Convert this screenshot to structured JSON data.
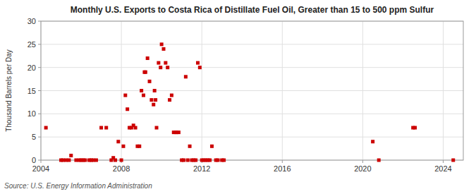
{
  "chart_data": {
    "type": "scatter",
    "title": "Monthly U.S. Exports to Costa Rica of Distillate Fuel Oil, Greater than 15 to 500 ppm Sulfur",
    "ylabel": "Thousand Barrels per Day",
    "annotations": [
      "Source: U.S. Energy Information Administration"
    ],
    "xlim": [
      2004.0,
      2025.0
    ],
    "xticks": [
      2004,
      2008,
      2012,
      2016,
      2020,
      2024
    ],
    "ylim": [
      0,
      30
    ],
    "yticks": [
      0,
      5,
      10,
      15,
      20,
      25,
      30
    ],
    "grid": true,
    "color": "#cc0000",
    "marker": "square",
    "x": [
      2004.25,
      2005.0,
      2005.1,
      2005.25,
      2005.4,
      2005.5,
      2005.75,
      2005.9,
      2006.0,
      2006.1,
      2006.2,
      2006.4,
      2006.5,
      2006.6,
      2006.75,
      2007.0,
      2007.25,
      2007.5,
      2007.6,
      2007.7,
      2007.85,
      2008.0,
      2008.1,
      2008.2,
      2008.3,
      2008.4,
      2008.5,
      2008.6,
      2008.7,
      2008.8,
      2008.9,
      2009.0,
      2009.1,
      2009.15,
      2009.2,
      2009.3,
      2009.4,
      2009.5,
      2009.6,
      2009.65,
      2009.7,
      2009.75,
      2009.85,
      2009.95,
      2010.0,
      2010.1,
      2010.2,
      2010.3,
      2010.4,
      2010.5,
      2010.6,
      2010.7,
      2010.75,
      2010.85,
      2011.0,
      2011.1,
      2011.2,
      2011.3,
      2011.4,
      2011.5,
      2011.6,
      2011.7,
      2011.8,
      2011.9,
      2012.0,
      2012.1,
      2012.2,
      2012.3,
      2012.4,
      2012.5,
      2012.7,
      2012.8,
      2013.0,
      2013.1,
      2020.5,
      2020.8,
      2022.5,
      2022.6,
      2024.5
    ],
    "values": [
      7.0,
      0.0,
      0.0,
      0.0,
      0.0,
      1.0,
      0.0,
      0.0,
      0.0,
      0.0,
      0.0,
      0.0,
      0.0,
      0.0,
      0.0,
      7.0,
      7.0,
      0.0,
      0.5,
      0.0,
      4.0,
      0.0,
      3.0,
      14.0,
      11.0,
      7.0,
      7.0,
      7.5,
      7.0,
      3.0,
      3.0,
      15.0,
      14.0,
      19.0,
      19.0,
      22.0,
      17.0,
      13.0,
      12.0,
      15.0,
      13.0,
      7.0,
      21.0,
      20.0,
      25.0,
      24.0,
      21.0,
      20.0,
      13.0,
      14.0,
      6.0,
      6.0,
      6.0,
      6.0,
      0.0,
      0.0,
      18.0,
      0.0,
      3.0,
      0.0,
      0.0,
      0.0,
      21.0,
      20.0,
      0.0,
      0.0,
      0.0,
      0.0,
      0.0,
      3.0,
      0.0,
      0.0,
      0.0,
      0.0,
      4.0,
      0.0,
      7.0,
      7.0,
      0.0
    ]
  }
}
